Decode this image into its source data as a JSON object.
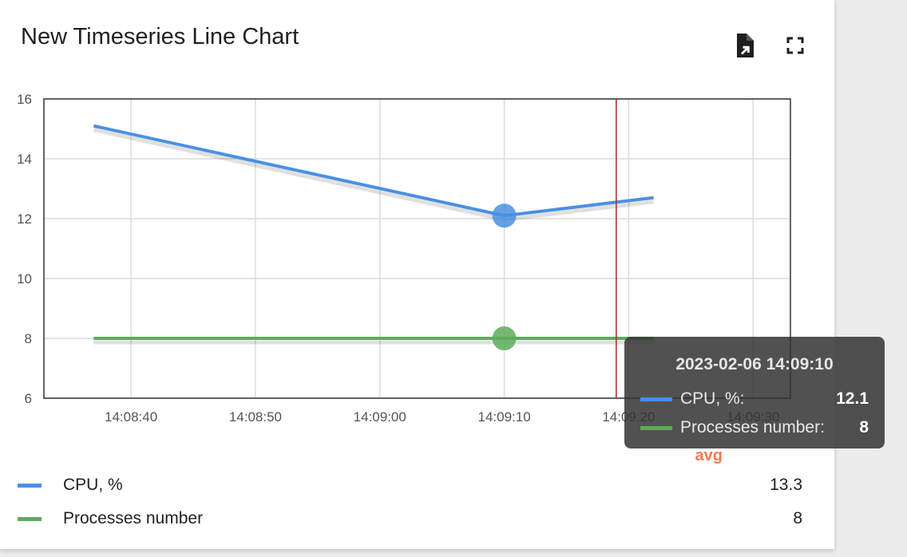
{
  "widget": {
    "title": "New Timeseries Line Chart",
    "actions": [
      {
        "name": "export-icon"
      },
      {
        "name": "fullscreen-icon"
      }
    ]
  },
  "chart_data": {
    "type": "line",
    "title": "New Timeseries Line Chart",
    "xlabel": "",
    "ylabel": "",
    "x_ticks": [
      "14:08:40",
      "14:08:50",
      "14:09:00",
      "14:09:10",
      "14:09:20",
      "14:09:30"
    ],
    "y_ticks": [
      "6",
      "8",
      "10",
      "12",
      "14",
      "16"
    ],
    "ylim": [
      6,
      16
    ],
    "xlim": [
      "14:08:33",
      "14:09:33"
    ],
    "grid": true,
    "legend_position": "bottom",
    "hover_x": "14:09:10",
    "cursor_x": "14:09:19",
    "series": [
      {
        "name": "CPU, %",
        "color": "#4a90e2",
        "x": [
          "14:08:37",
          "14:09:10",
          "14:09:22"
        ],
        "values": [
          15.1,
          12.1,
          12.7
        ]
      },
      {
        "name": "Processes number",
        "color": "#5dab5c",
        "x": [
          "14:08:37",
          "14:09:10",
          "14:09:22"
        ],
        "values": [
          8,
          8,
          8
        ]
      }
    ]
  },
  "legend": {
    "avg_header": "avg",
    "items": [
      {
        "label": "CPU, %",
        "value": "13.3",
        "color": "#4a90e2"
      },
      {
        "label": "Processes number",
        "value": "8",
        "color": "#5dab5c"
      }
    ]
  },
  "tooltip": {
    "title": "2023-02-06 14:09:10",
    "rows": [
      {
        "label": "CPU, %:",
        "value": "12.1",
        "color": "#4a90e2"
      },
      {
        "label": "Processes number:",
        "value": "8",
        "color": "#5dab5c"
      }
    ]
  }
}
